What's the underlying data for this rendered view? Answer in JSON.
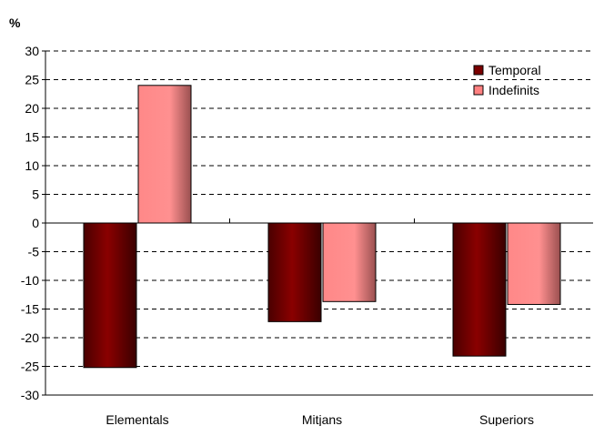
{
  "chart_data": {
    "type": "bar",
    "unit_label": "%",
    "categories": [
      "Elementals",
      "Mitjans",
      "Superiors"
    ],
    "series": [
      {
        "name": "Temporal",
        "values": [
          -25.2,
          -17.2,
          -23.2
        ],
        "color": "#7a0000"
      },
      {
        "name": "Indefinits",
        "values": [
          24,
          -13.7,
          -14.2
        ],
        "color": "#ff8080"
      }
    ],
    "ylim": [
      -30,
      30
    ],
    "yticks": [
      30,
      25,
      20,
      15,
      10,
      5,
      0,
      -5,
      -10,
      -15,
      -20,
      -25,
      -30
    ],
    "grid": true,
    "legend_position": "top-right"
  }
}
